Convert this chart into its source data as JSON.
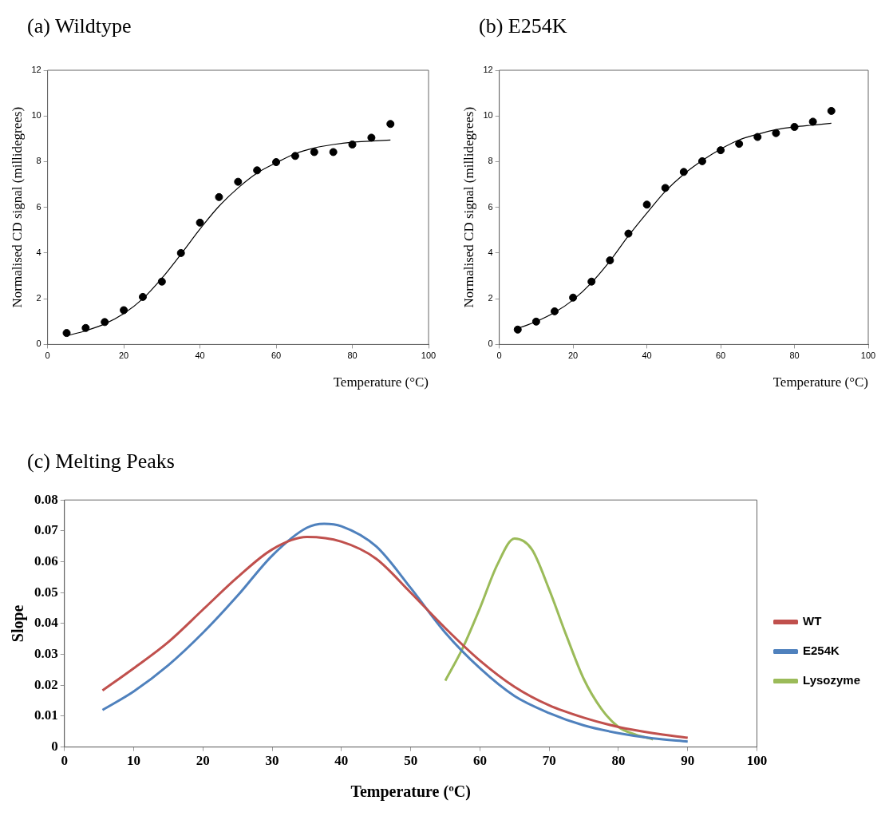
{
  "chart_data": [
    {
      "type": "scatter",
      "title": "(a) Wildtype",
      "xlabel": "Temperature (°C)",
      "ylabel": "Normalised CD signal (millidegrees)",
      "xlim": [
        0,
        100
      ],
      "xticks": [
        0,
        20,
        40,
        60,
        80,
        100
      ],
      "ylim": [
        0,
        12
      ],
      "yticks": [
        0,
        2,
        4,
        6,
        8,
        10,
        12
      ],
      "series": [
        {
          "marker": "circle",
          "color": "#000000",
          "x": [
            5,
            10,
            15,
            20,
            25,
            30,
            35,
            40,
            45,
            50,
            55,
            60,
            65,
            70,
            75,
            80,
            85,
            90
          ],
          "values": [
            0.5,
            0.72,
            0.98,
            1.5,
            2.08,
            2.75,
            4.0,
            5.33,
            6.45,
            7.12,
            7.62,
            7.98,
            8.25,
            8.42,
            8.42,
            8.75,
            9.05,
            9.65
          ]
        },
        {
          "type": "line",
          "marker": "none",
          "color": "#000000",
          "x": [
            5,
            10,
            15,
            20,
            25,
            30,
            35,
            40,
            45,
            50,
            55,
            60,
            65,
            70,
            75,
            80,
            85,
            90
          ],
          "values": [
            0.38,
            0.6,
            0.9,
            1.35,
            2.0,
            2.9,
            3.95,
            5.05,
            6.05,
            6.85,
            7.5,
            7.95,
            8.35,
            8.6,
            8.75,
            8.85,
            8.9,
            8.95
          ]
        }
      ]
    },
    {
      "type": "scatter",
      "title": "(b) E254K",
      "xlabel": "Temperature (°C)",
      "ylabel": "Normalised CD signal (millidegrees)",
      "xlim": [
        0,
        100
      ],
      "xticks": [
        0,
        20,
        40,
        60,
        80,
        100
      ],
      "ylim": [
        0,
        12
      ],
      "yticks": [
        0,
        2,
        4,
        6,
        8,
        10,
        12
      ],
      "series": [
        {
          "marker": "circle",
          "color": "#000000",
          "x": [
            5,
            10,
            15,
            20,
            25,
            30,
            35,
            40,
            45,
            50,
            55,
            60,
            65,
            70,
            75,
            80,
            85,
            90
          ],
          "values": [
            0.65,
            1.0,
            1.45,
            2.05,
            2.75,
            3.68,
            4.85,
            6.12,
            6.85,
            7.55,
            8.02,
            8.5,
            8.78,
            9.08,
            9.25,
            9.52,
            9.75,
            10.22
          ]
        },
        {
          "type": "line",
          "marker": "none",
          "color": "#000000",
          "x": [
            5,
            10,
            15,
            20,
            25,
            30,
            35,
            40,
            45,
            50,
            55,
            60,
            65,
            70,
            75,
            80,
            85,
            90
          ],
          "values": [
            0.7,
            1.0,
            1.4,
            1.95,
            2.7,
            3.65,
            4.75,
            5.75,
            6.7,
            7.45,
            8.05,
            8.55,
            8.95,
            9.2,
            9.4,
            9.52,
            9.6,
            9.68
          ]
        }
      ]
    },
    {
      "type": "line",
      "title": "(c) Melting Peaks",
      "xlabel": "Temperature (ºC)",
      "ylabel": "Slope",
      "xlim": [
        0,
        100
      ],
      "xticks": [
        0,
        10,
        20,
        30,
        40,
        50,
        60,
        70,
        80,
        90,
        100
      ],
      "ylim": [
        0,
        0.08
      ],
      "yticks": [
        {
          "value": 0,
          "label": "0"
        },
        {
          "value": 0.01,
          "label": "0.01"
        },
        {
          "value": 0.02,
          "label": "0.02"
        },
        {
          "value": 0.03,
          "label": "0.03"
        },
        {
          "value": 0.04,
          "label": "0.04"
        },
        {
          "value": 0.05,
          "label": "0.05"
        },
        {
          "value": 0.06,
          "label": "0.06"
        },
        {
          "value": 0.07,
          "label": "0.07"
        },
        {
          "value": 0.08,
          "label": "0.08"
        }
      ],
      "legend": "right",
      "series": [
        {
          "name": "WT",
          "color": "#c0504d",
          "x": [
            5.5,
            10,
            15,
            20,
            25,
            30,
            35,
            40,
            45,
            50,
            55,
            60,
            65,
            70,
            75,
            80,
            85,
            90
          ],
          "values": [
            0.0183,
            0.0255,
            0.034,
            0.0445,
            0.055,
            0.064,
            0.068,
            0.0665,
            0.061,
            0.05,
            0.0385,
            0.028,
            0.0195,
            0.0135,
            0.0095,
            0.0065,
            0.0045,
            0.003
          ]
        },
        {
          "name": "E254K",
          "color": "#4f81bd",
          "x": [
            5.5,
            10,
            15,
            20,
            25,
            30,
            35,
            37.5,
            40,
            45,
            50,
            55,
            60,
            65,
            70,
            75,
            80,
            85,
            90
          ],
          "values": [
            0.012,
            0.018,
            0.0265,
            0.037,
            0.049,
            0.062,
            0.071,
            0.0723,
            0.0715,
            0.065,
            0.0515,
            0.037,
            0.0255,
            0.0165,
            0.011,
            0.007,
            0.0045,
            0.0028,
            0.0018
          ]
        },
        {
          "name": "Lysozyme",
          "color": "#9bbb59",
          "x": [
            55,
            57.5,
            60,
            62.5,
            65,
            67.5,
            70,
            72.5,
            75,
            77.5,
            80,
            82.5,
            85
          ],
          "values": [
            0.0215,
            0.032,
            0.045,
            0.059,
            0.0675,
            0.064,
            0.051,
            0.036,
            0.022,
            0.0125,
            0.0065,
            0.004,
            0.0025
          ]
        }
      ]
    }
  ]
}
